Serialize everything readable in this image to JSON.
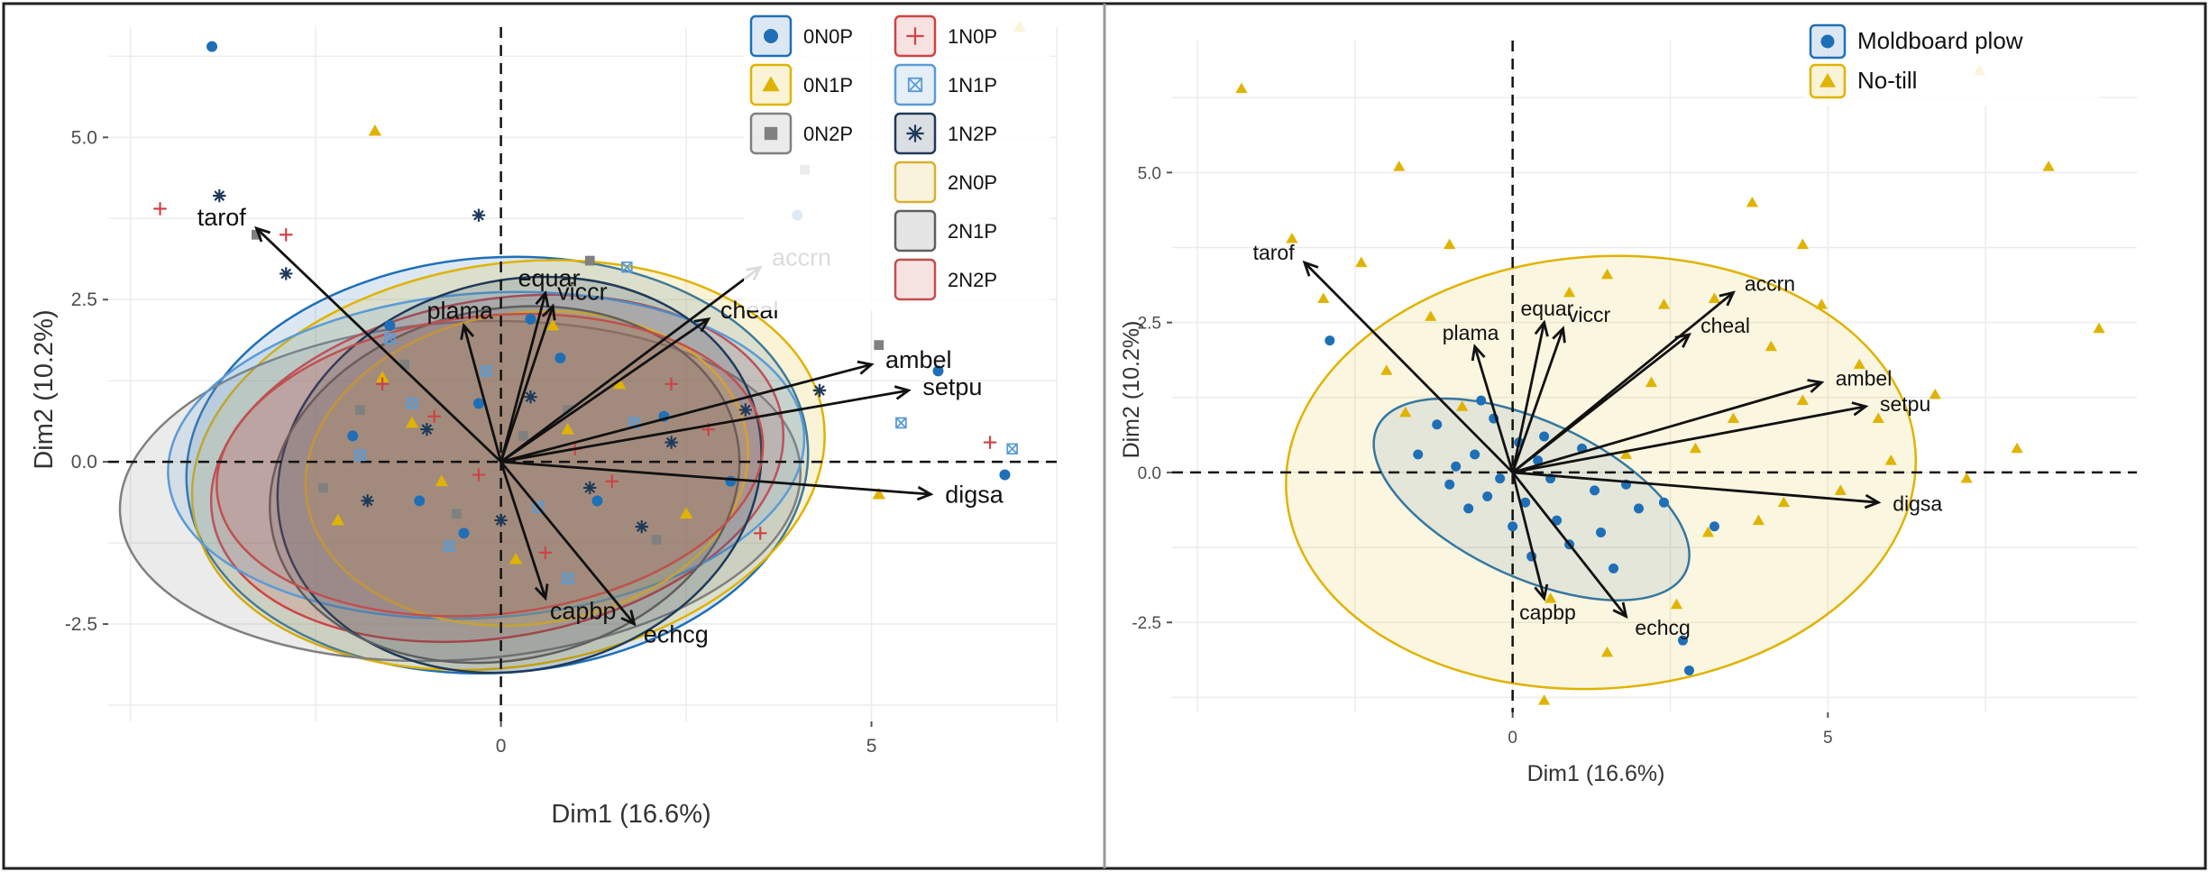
{
  "chart_data": [
    {
      "type": "scatter",
      "subtype": "pca-biplot",
      "xlabel": "Dim1 (16.6%)",
      "ylabel": "Dim2 (10.2%)",
      "xlim": [
        -5.3,
        7.5
      ],
      "ylim": [
        -4.0,
        6.7
      ],
      "x_ticks": [
        0,
        5
      ],
      "x_tick_labels": [
        "0",
        "5"
      ],
      "y_ticks": [
        -2.5,
        0.0,
        2.5,
        5.0
      ],
      "y_tick_labels": [
        "-2.5",
        "0.0",
        "2.5",
        "5.0"
      ],
      "grid": true,
      "legend_position": "top-right",
      "series": [
        {
          "name": "0N0P",
          "marker": "circle",
          "color": "#1f6fb7",
          "points": [
            [
              -3.9,
              6.4
            ],
            [
              4.0,
              3.8
            ],
            [
              5.9,
              1.4
            ],
            [
              6.8,
              -0.2
            ],
            [
              -1.5,
              2.1
            ],
            [
              0.8,
              1.6
            ],
            [
              -2.0,
              0.4
            ],
            [
              1.3,
              -0.6
            ],
            [
              -0.5,
              -1.1
            ],
            [
              2.2,
              0.7
            ],
            [
              0.4,
              2.2
            ],
            [
              -1.1,
              -0.6
            ],
            [
              3.1,
              -0.3
            ],
            [
              -0.3,
              0.9
            ]
          ],
          "ellipse": {
            "cx": -0.05,
            "cy": -0.05,
            "rx": 4.2,
            "ry": 3.2,
            "angle": 4
          }
        },
        {
          "name": "0N1P",
          "marker": "triangle",
          "color": "#e0b300",
          "points": [
            [
              7.0,
              6.7
            ],
            [
              -1.7,
              5.1
            ],
            [
              5.1,
              -0.5
            ],
            [
              -1.6,
              1.3
            ],
            [
              0.9,
              0.5
            ],
            [
              -0.8,
              -0.3
            ],
            [
              1.6,
              1.2
            ],
            [
              -2.2,
              -0.9
            ],
            [
              0.2,
              -1.5
            ],
            [
              -1.2,
              0.6
            ],
            [
              2.5,
              -0.8
            ],
            [
              0.7,
              2.1
            ]
          ],
          "ellipse": {
            "cx": 0.1,
            "cy": -0.05,
            "rx": 4.3,
            "ry": 3.1,
            "angle": 9
          }
        },
        {
          "name": "0N2P",
          "marker": "square",
          "color": "#808080",
          "points": [
            [
              4.1,
              4.5
            ],
            [
              5.1,
              1.8
            ],
            [
              -3.3,
              3.5
            ],
            [
              1.2,
              3.1
            ],
            [
              -1.3,
              1.5
            ],
            [
              0.3,
              0.4
            ],
            [
              -0.6,
              -0.8
            ],
            [
              2.1,
              -1.2
            ],
            [
              -1.9,
              0.8
            ],
            [
              0.9,
              0.8
            ],
            [
              -2.4,
              -0.4
            ]
          ],
          "ellipse": {
            "cx": -0.55,
            "cy": -0.45,
            "rx": 4.6,
            "ry": 2.6,
            "angle": 4
          }
        },
        {
          "name": "1N0P",
          "marker": "plus",
          "color": "#cd4446",
          "points": [
            [
              -4.6,
              3.9
            ],
            [
              -2.9,
              3.5
            ],
            [
              6.6,
              0.3
            ],
            [
              2.3,
              1.2
            ],
            [
              3.5,
              -1.1
            ],
            [
              1.5,
              -0.3
            ],
            [
              -0.9,
              0.7
            ],
            [
              0.6,
              -1.4
            ],
            [
              -1.6,
              1.2
            ],
            [
              1.0,
              0.2
            ],
            [
              -0.3,
              -0.2
            ],
            [
              2.8,
              0.5
            ]
          ],
          "ellipse": {
            "cx": -0.05,
            "cy": -0.1,
            "rx": 3.9,
            "ry": 2.6,
            "angle": 10
          }
        },
        {
          "name": "1N1P",
          "marker": "crossbox",
          "color": "#5b9bd5",
          "points": [
            [
              6.9,
              0.2
            ],
            [
              5.4,
              0.6
            ],
            [
              1.7,
              3.0
            ],
            [
              -1.5,
              1.9
            ],
            [
              0.5,
              -0.7
            ],
            [
              -0.2,
              1.4
            ],
            [
              -1.9,
              0.1
            ],
            [
              1.8,
              0.6
            ],
            [
              -0.7,
              -1.3
            ],
            [
              0.9,
              -1.8
            ],
            [
              -1.2,
              0.9
            ]
          ],
          "ellipse": {
            "cx": -0.2,
            "cy": 0.1,
            "rx": 4.3,
            "ry": 2.5,
            "angle": 4
          }
        },
        {
          "name": "1N2P",
          "marker": "asterisk",
          "color": "#1f3a5a",
          "points": [
            [
              -3.8,
              4.1
            ],
            [
              -0.3,
              3.8
            ],
            [
              -2.9,
              2.9
            ],
            [
              4.3,
              1.1
            ],
            [
              3.3,
              0.8
            ],
            [
              1.9,
              -1.0
            ],
            [
              -1.0,
              0.5
            ],
            [
              0.4,
              1.0
            ],
            [
              -1.8,
              -0.6
            ],
            [
              1.2,
              -0.4
            ],
            [
              0.0,
              -0.9
            ],
            [
              2.3,
              0.3
            ]
          ],
          "ellipse": {
            "cx": 0.25,
            "cy": -0.2,
            "rx": 3.3,
            "ry": 3.0,
            "angle": 14
          }
        },
        {
          "name": "2N0P",
          "marker": "ellipse",
          "color": "#d9b12e",
          "points": [],
          "ellipse": {
            "cx": 0.35,
            "cy": -0.1,
            "rx": 3.0,
            "ry": 2.4,
            "angle": 8
          }
        },
        {
          "name": "2N1P",
          "marker": "ellipse",
          "color": "#5f5f5f",
          "points": [],
          "ellipse": {
            "cx": 0.05,
            "cy": -0.35,
            "rx": 3.2,
            "ry": 2.7,
            "angle": 12
          }
        },
        {
          "name": "2N2P",
          "marker": "ellipse",
          "color": "#c0504d",
          "points": [],
          "ellipse": {
            "cx": -0.15,
            "cy": -0.05,
            "rx": 3.7,
            "ry": 2.3,
            "angle": 6
          }
        }
      ],
      "vectors": [
        {
          "name": "tarof",
          "x": -3.3,
          "y": 3.6
        },
        {
          "name": "equar",
          "x": 0.6,
          "y": 2.6
        },
        {
          "name": "viccr",
          "x": 0.7,
          "y": 2.4
        },
        {
          "name": "plama",
          "x": -0.5,
          "y": 2.1
        },
        {
          "name": "cheal",
          "x": 2.8,
          "y": 2.2
        },
        {
          "name": "accrn",
          "x": 3.5,
          "y": 3.0
        },
        {
          "name": "ambel",
          "x": 5.0,
          "y": 1.5
        },
        {
          "name": "setpu",
          "x": 5.5,
          "y": 1.1
        },
        {
          "name": "digsa",
          "x": 5.8,
          "y": -0.5
        },
        {
          "name": "capbp",
          "x": 0.6,
          "y": -2.1
        },
        {
          "name": "echcg",
          "x": 1.8,
          "y": -2.5
        }
      ]
    },
    {
      "type": "scatter",
      "subtype": "pca-biplot",
      "xlabel": "Dim1 (16.6%)",
      "ylabel": "Dim2 (10.2%)",
      "xlim": [
        -5.4,
        9.9
      ],
      "ylim": [
        -4.0,
        7.2
      ],
      "x_ticks": [
        0,
        5
      ],
      "x_tick_labels": [
        "0",
        "5"
      ],
      "y_ticks": [
        -2.5,
        0.0,
        2.5,
        5.0
      ],
      "y_tick_labels": [
        "-2.5",
        "0.0",
        "2.5",
        "5.0"
      ],
      "grid": true,
      "legend_position": "top-right",
      "series": [
        {
          "name": "Moldboard plow",
          "marker": "circle",
          "color": "#1f6fb7",
          "points": [
            [
              -2.9,
              2.2
            ],
            [
              2.8,
              -3.3
            ],
            [
              2.7,
              -2.8
            ],
            [
              3.2,
              -0.9
            ],
            [
              -1.2,
              0.8
            ],
            [
              -0.6,
              0.3
            ],
            [
              0.2,
              -0.5
            ],
            [
              0.9,
              -1.2
            ],
            [
              -0.4,
              -0.4
            ],
            [
              0.5,
              0.6
            ],
            [
              1.3,
              -0.3
            ],
            [
              -0.9,
              0.1
            ],
            [
              0.0,
              -0.9
            ],
            [
              1.6,
              -1.6
            ],
            [
              -0.3,
              0.9
            ],
            [
              0.7,
              -0.8
            ],
            [
              1.1,
              0.4
            ],
            [
              -1.5,
              0.3
            ],
            [
              0.3,
              -1.4
            ],
            [
              2.0,
              -0.6
            ],
            [
              -0.2,
              -0.1
            ],
            [
              0.4,
              0.2
            ],
            [
              -0.7,
              -0.6
            ],
            [
              1.8,
              -0.2
            ],
            [
              0.1,
              0.5
            ],
            [
              -1.0,
              -0.2
            ],
            [
              0.6,
              -0.1
            ],
            [
              1.4,
              -1.0
            ],
            [
              -0.5,
              1.2
            ],
            [
              2.4,
              -0.5
            ]
          ],
          "ellipse": {
            "cx": 0.3,
            "cy": -0.45,
            "rx": 2.7,
            "ry": 1.3,
            "angle": -25
          }
        },
        {
          "name": "No-till",
          "marker": "triangle",
          "color": "#e0b300",
          "points": [
            [
              -4.3,
              6.4
            ],
            [
              7.4,
              6.7
            ],
            [
              8.5,
              5.1
            ],
            [
              -1.8,
              5.1
            ],
            [
              9.3,
              2.4
            ],
            [
              8.0,
              0.4
            ],
            [
              7.2,
              -0.1
            ],
            [
              -3.5,
              3.9
            ],
            [
              3.8,
              4.5
            ],
            [
              4.6,
              3.8
            ],
            [
              5.5,
              1.8
            ],
            [
              6.7,
              1.3
            ],
            [
              -2.4,
              3.5
            ],
            [
              1.5,
              3.3
            ],
            [
              3.2,
              2.9
            ],
            [
              4.1,
              2.1
            ],
            [
              -1.0,
              3.8
            ],
            [
              2.4,
              2.8
            ],
            [
              6.0,
              0.2
            ],
            [
              3.9,
              -0.8
            ],
            [
              5.2,
              -0.3
            ],
            [
              0.5,
              -3.8
            ],
            [
              1.5,
              -3.0
            ],
            [
              2.6,
              -2.2
            ],
            [
              -2.0,
              1.7
            ],
            [
              -1.3,
              2.6
            ],
            [
              0.9,
              3.0
            ],
            [
              2.2,
              1.5
            ],
            [
              3.5,
              0.9
            ],
            [
              4.6,
              1.2
            ],
            [
              5.8,
              0.9
            ],
            [
              -0.8,
              1.1
            ],
            [
              1.8,
              0.3
            ],
            [
              3.1,
              -1.0
            ],
            [
              4.3,
              -0.5
            ],
            [
              0.6,
              -2.1
            ],
            [
              -1.7,
              1.0
            ],
            [
              2.9,
              0.4
            ],
            [
              -3.0,
              2.9
            ],
            [
              4.9,
              2.8
            ]
          ],
          "ellipse": {
            "cx": 1.4,
            "cy": 0.0,
            "rx": 5.0,
            "ry": 3.6,
            "angle": 4
          }
        }
      ],
      "vectors": [
        {
          "name": "tarof",
          "x": -3.3,
          "y": 3.5
        },
        {
          "name": "equar",
          "x": 0.5,
          "y": 2.5
        },
        {
          "name": "viccr",
          "x": 0.8,
          "y": 2.4
        },
        {
          "name": "plama",
          "x": -0.6,
          "y": 2.1
        },
        {
          "name": "cheal",
          "x": 2.8,
          "y": 2.3
        },
        {
          "name": "accrn",
          "x": 3.5,
          "y": 3.0
        },
        {
          "name": "ambel",
          "x": 4.9,
          "y": 1.5
        },
        {
          "name": "setpu",
          "x": 5.6,
          "y": 1.1
        },
        {
          "name": "digsa",
          "x": 5.8,
          "y": -0.5
        },
        {
          "name": "capbp",
          "x": 0.5,
          "y": -2.1
        },
        {
          "name": "echcg",
          "x": 1.8,
          "y": -2.4
        }
      ]
    }
  ]
}
